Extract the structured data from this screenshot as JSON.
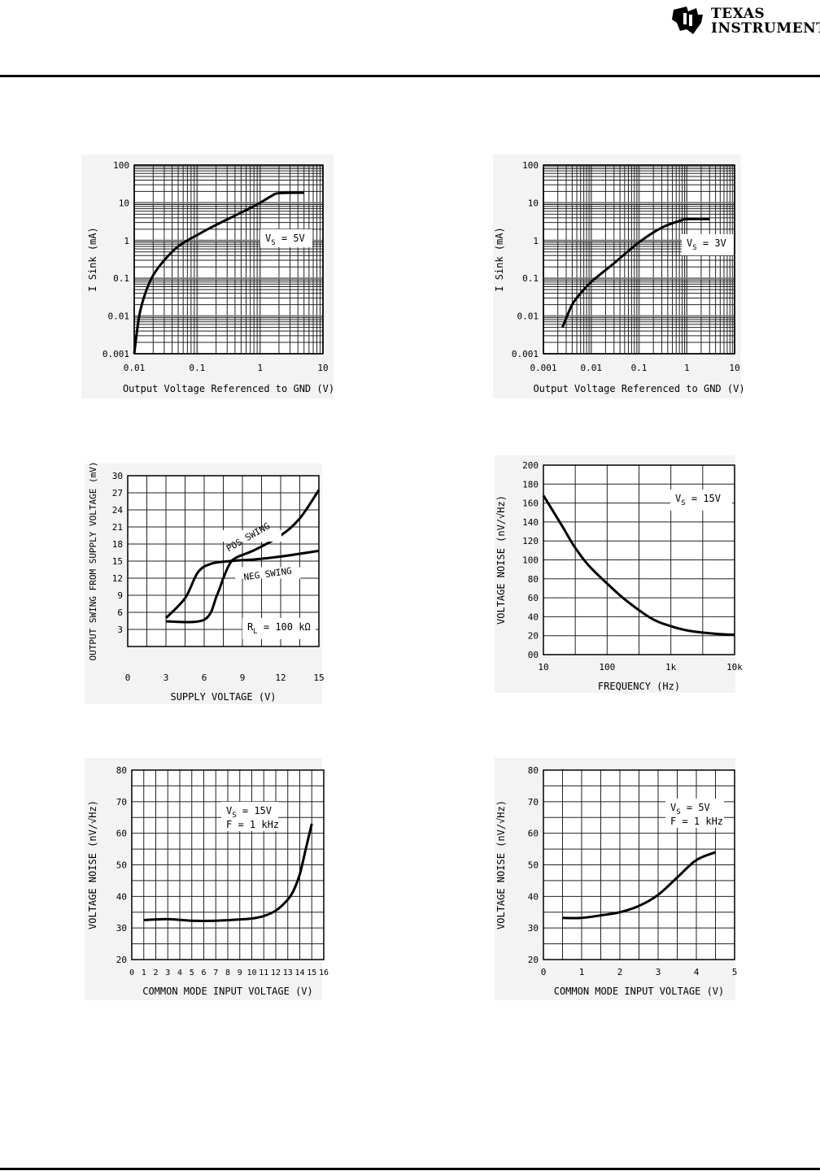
{
  "header": {
    "logo_line1": "TEXAS",
    "logo_line2": "INSTRUMENTS"
  },
  "chart_data": [
    {
      "type": "line",
      "title": "",
      "xlabel": "Output Voltage Referenced to GND (V)",
      "ylabel": "I Sink (mA)",
      "xscale": "log",
      "yscale": "log",
      "xlim": [
        0.01,
        10
      ],
      "ylim": [
        0.001,
        100
      ],
      "xticks": [
        "0.01",
        "0.1",
        "1",
        "10"
      ],
      "yticks": [
        "0.001",
        "0.01",
        "0.1",
        "1",
        "10",
        "100"
      ],
      "annotation": {
        "main": "V",
        "sub": "S",
        "rest": " = 5V"
      },
      "series": [
        {
          "name": "VS=5V",
          "x": [
            0.01,
            0.012,
            0.015,
            0.02,
            0.03,
            0.05,
            0.1,
            0.2,
            0.5,
            1,
            1.5,
            2,
            5
          ],
          "y": [
            0.001,
            0.01,
            0.04,
            0.12,
            0.3,
            0.7,
            1.4,
            2.6,
            5.5,
            10,
            15,
            18,
            18.5
          ]
        }
      ]
    },
    {
      "type": "line",
      "title": "",
      "xlabel": "Output Voltage Referenced to GND (V)",
      "ylabel": "I Sink (mA)",
      "xscale": "log",
      "yscale": "log",
      "xlim": [
        0.001,
        10
      ],
      "ylim": [
        0.001,
        100
      ],
      "xticks": [
        "0.001",
        "0.01",
        "0.1",
        "1",
        "10"
      ],
      "yticks": [
        "0.001",
        "0.01",
        "0.1",
        "1",
        "10",
        "100"
      ],
      "annotation": {
        "main": "V",
        "sub": "S",
        "rest": " = 3V"
      },
      "series": [
        {
          "name": "VS=3V",
          "x": [
            0.0025,
            0.004,
            0.006,
            0.01,
            0.03,
            0.1,
            0.3,
            0.8,
            1,
            3
          ],
          "y": [
            0.005,
            0.02,
            0.04,
            0.08,
            0.25,
            0.9,
            2.2,
            3.5,
            3.7,
            3.7
          ]
        }
      ]
    },
    {
      "type": "line",
      "title": "",
      "xlabel": "SUPPLY VOLTAGE (V)",
      "ylabel": "OUTPUT SWING FROM SUPPLY VOLTAGE (mV)",
      "xscale": "linear",
      "yscale": "linear",
      "xlim": [
        0,
        15
      ],
      "ylim": [
        0,
        30
      ],
      "xticks": [
        "0",
        "3",
        "6",
        "9",
        "12",
        "15"
      ],
      "yticks": [
        "3",
        "6",
        "9",
        "12",
        "15",
        "18",
        "21",
        "24",
        "27",
        "30"
      ],
      "annotation": {
        "main": "R",
        "sub": "L",
        "rest": " = 100 kΩ"
      },
      "series": [
        {
          "name": "POS SWING",
          "x": [
            3,
            6,
            7,
            7.5,
            8,
            8.5,
            10,
            12,
            13.5,
            15
          ],
          "y": [
            4.4,
            4.7,
            9,
            12,
            14.5,
            15.6,
            17,
            19.5,
            22.5,
            27.5
          ]
        },
        {
          "name": "NEG SWING",
          "x": [
            3,
            4.5,
            5.5,
            6.5,
            8,
            10,
            12,
            15
          ],
          "y": [
            5,
            8.5,
            13,
            14.5,
            15,
            15.3,
            15.8,
            16.8
          ]
        }
      ]
    },
    {
      "type": "line",
      "title": "",
      "xlabel": "FREQUENCY (Hz)",
      "ylabel": "VOLTAGE NOISE (nV/√Hz)",
      "xscale": "log",
      "yscale": "linear",
      "xlim": [
        10,
        10000
      ],
      "ylim": [
        0,
        200
      ],
      "xticks": [
        "10",
        "100",
        "1k",
        "10k"
      ],
      "yticks": [
        "00",
        "20",
        "40",
        "60",
        "80",
        "100",
        "120",
        "140",
        "160",
        "180",
        "200"
      ],
      "annotation": {
        "main": "V",
        "sub": "S",
        "rest": " = 15V"
      },
      "series": [
        {
          "name": "VS=15V",
          "x": [
            10,
            20,
            30,
            50,
            100,
            200,
            500,
            1000,
            2000,
            5000,
            10000
          ],
          "y": [
            168,
            135,
            115,
            95,
            75,
            57,
            38,
            30,
            25,
            22,
            21
          ]
        }
      ]
    },
    {
      "type": "line",
      "title": "",
      "xlabel": "COMMON MODE INPUT VOLTAGE (V)",
      "ylabel": "VOLTAGE NOISE (nV/√Hz)",
      "xscale": "linear",
      "yscale": "linear",
      "xlim": [
        0,
        16
      ],
      "ylim": [
        20,
        80
      ],
      "xticks": [
        "0",
        "1",
        "2",
        "3",
        "4",
        "5",
        "6",
        "7",
        "8",
        "9",
        "10",
        "11",
        "12",
        "13",
        "14",
        "15",
        "16"
      ],
      "yticks": [
        "20",
        "30",
        "40",
        "50",
        "60",
        "70",
        "80"
      ],
      "annotation": {
        "main": "V",
        "sub": "S",
        "rest": " = 15V",
        "line2": "F = 1 kHz"
      },
      "series": [
        {
          "name": "VS=15V, F=1kHz",
          "x": [
            1,
            3,
            5,
            7,
            9,
            10,
            11,
            12,
            13,
            13.5,
            14,
            14.5,
            15
          ],
          "y": [
            32.5,
            32.8,
            32.3,
            32.3,
            32.7,
            33,
            33.8,
            35.5,
            39,
            42,
            47,
            55,
            63
          ]
        }
      ]
    },
    {
      "type": "line",
      "title": "",
      "xlabel": "COMMON MODE INPUT VOLTAGE (V)",
      "ylabel": "VOLTAGE NOISE (nV/√Hz)",
      "xscale": "linear",
      "yscale": "linear",
      "xlim": [
        0,
        5
      ],
      "ylim": [
        20,
        80
      ],
      "xticks": [
        "0",
        "1",
        "2",
        "3",
        "4",
        "5"
      ],
      "yticks": [
        "20",
        "30",
        "40",
        "50",
        "60",
        "70",
        "80"
      ],
      "annotation": {
        "main": "V",
        "sub": "S",
        "rest": " = 5V",
        "line2": "F = 1 kHz"
      },
      "series": [
        {
          "name": "VS=5V, F=1kHz",
          "x": [
            0.5,
            1,
            1.5,
            2,
            2.5,
            3,
            3.5,
            4,
            4.5
          ],
          "y": [
            33.2,
            33.2,
            34,
            35,
            37,
            40.5,
            46,
            51.5,
            54
          ]
        }
      ]
    }
  ]
}
